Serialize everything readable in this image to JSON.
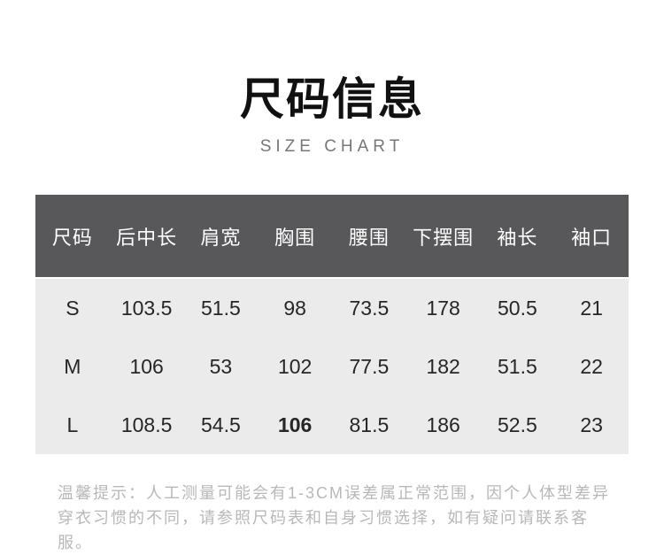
{
  "page": {
    "title": "尺码信息",
    "subtitle": "SIZE CHART"
  },
  "chart_data": {
    "type": "table",
    "title": "尺码信息",
    "subtitle": "SIZE CHART",
    "columns": [
      "尺码",
      "后中长",
      "肩宽",
      "胸围",
      "腰围",
      "下摆围",
      "袖长",
      "袖口"
    ],
    "rows": [
      [
        "S",
        "103.5",
        "51.5",
        "98",
        "73.5",
        "178",
        "50.5",
        "21"
      ],
      [
        "M",
        "106",
        "53",
        "102",
        "77.5",
        "182",
        "51.5",
        "22"
      ],
      [
        "L",
        "108.5",
        "54.5",
        "106",
        "81.5",
        "186",
        "52.5",
        "23"
      ]
    ],
    "emphasized_cell": {
      "row_index": 2,
      "col_index": 3,
      "value": "106"
    }
  },
  "note": {
    "line1": "温馨提示：人工测量可能会有1-3CM误差属正常范围，因个人体型差异",
    "line2": "穿衣习惯的不同，请参照尺码表和自身习惯选择，如有疑问请联系客服。"
  },
  "colors": {
    "header_bg": "#58585a",
    "header_text": "#ffffff",
    "row_bg": "#ebebeb",
    "cell_text": "#262626",
    "title_text": "#111111",
    "subtitle_text": "#777777",
    "note_text": "#b8b8b8",
    "page_bg": "#ffffff"
  }
}
